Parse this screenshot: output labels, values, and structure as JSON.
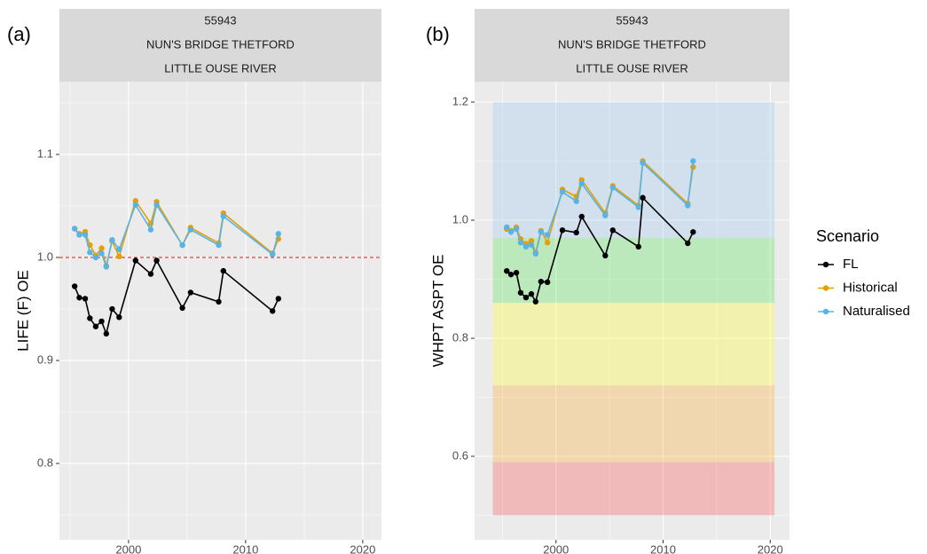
{
  "chart_data": [
    {
      "type": "line",
      "panel_label": "(a)",
      "strip": [
        "55943",
        "NUN'S BRIDGE THETFORD",
        "LITTLE OUSE RIVER"
      ],
      "y_label": "LIFE (F) OE",
      "x": [
        1995.4,
        1995.8,
        1996.3,
        1996.7,
        1997.2,
        1997.7,
        1998.1,
        1998.6,
        1999.2,
        2000.6,
        2001.9,
        2002.4,
        2004.6,
        2005.3,
        2007.7,
        2008.1,
        2012.3,
        2012.8
      ],
      "series": [
        {
          "name": "FL",
          "color": "#000000",
          "values": [
            0.972,
            0.961,
            0.96,
            0.941,
            0.933,
            0.938,
            0.926,
            0.95,
            0.942,
            0.997,
            0.984,
            0.997,
            0.951,
            0.966,
            0.957,
            0.987,
            0.948,
            0.96
          ]
        },
        {
          "name": "Historical",
          "color": "#E69F00",
          "values": [
            1.028,
            1.023,
            1.025,
            1.012,
            1.002,
            1.009,
            0.992,
            1.016,
            1.001,
            1.055,
            1.033,
            1.054,
            1.012,
            1.029,
            1.014,
            1.043,
            1.004,
            1.018
          ]
        },
        {
          "name": "Naturalised",
          "color": "#56B4E9",
          "values": [
            1.028,
            1.022,
            1.022,
            1.005,
            1.0,
            1.004,
            0.991,
            1.017,
            1.008,
            1.051,
            1.027,
            1.051,
            1.012,
            1.027,
            1.012,
            1.04,
            1.003,
            1.023
          ]
        }
      ],
      "hline": {
        "value": 1,
        "color": "#e8413a"
      },
      "xlim": [
        1994.1,
        2021.6
      ],
      "xticks": [
        2000,
        2010,
        2020
      ],
      "ylim": [
        0.7259,
        1.1707
      ],
      "yticks": [
        0.8,
        0.9,
        {
          "value": 1,
          "label": "1.0"
        },
        1.1
      ],
      "grid": true
    },
    {
      "type": "line",
      "panel_label": "(b)",
      "strip": [
        "55943",
        "NUN'S BRIDGE THETFORD",
        "LITTLE OUSE RIVER"
      ],
      "y_label": "WHPT ASPT OE",
      "x": [
        1995.4,
        1995.8,
        1996.3,
        1996.7,
        1997.2,
        1997.7,
        1998.1,
        1998.6,
        1999.2,
        2000.6,
        2001.9,
        2002.4,
        2004.6,
        2005.3,
        2007.7,
        2008.1,
        2012.3,
        2012.8
      ],
      "series": [
        {
          "name": "FL",
          "color": "#000000",
          "values": [
            0.914,
            0.908,
            0.911,
            0.877,
            0.869,
            0.875,
            0.862,
            0.896,
            0.895,
            0.983,
            0.979,
            1.006,
            0.94,
            0.983,
            0.955,
            1.038,
            0.961,
            0.98
          ]
        },
        {
          "name": "Historical",
          "color": "#E69F00",
          "values": [
            0.985,
            0.982,
            0.988,
            0.968,
            0.96,
            0.965,
            0.945,
            0.982,
            0.962,
            1.052,
            1.04,
            1.068,
            1.012,
            1.058,
            1.025,
            1.1,
            1.028,
            1.09
          ]
        },
        {
          "name": "Naturalised",
          "color": "#56B4E9",
          "values": [
            0.988,
            0.98,
            0.985,
            0.962,
            0.955,
            0.958,
            0.943,
            0.98,
            0.975,
            1.048,
            1.032,
            1.062,
            1.008,
            1.055,
            1.022,
            1.097,
            1.025,
            1.1
          ]
        }
      ],
      "bands_x": [
        1994.1,
        2020.4
      ],
      "bands": [
        {
          "range": [
            0.5,
            0.59
          ],
          "color": "rgba(255,60,60,0.28)"
        },
        {
          "range": [
            0.59,
            0.72
          ],
          "color": "rgba(255,170,40,0.3)"
        },
        {
          "range": [
            0.72,
            0.86
          ],
          "color": "rgba(255,255,60,0.35)"
        },
        {
          "range": [
            0.86,
            0.97
          ],
          "color": "rgba(80,230,80,0.3)"
        },
        {
          "range": [
            0.97,
            1.2
          ],
          "color": "rgba(150,200,240,0.3)"
        }
      ],
      "xlim": [
        1992.4,
        2021.8
      ],
      "xticks": [
        2000,
        2010,
        2020
      ],
      "ylim": [
        0.4586,
        1.2346
      ],
      "yticks": [
        0.6,
        0.8,
        {
          "value": 1,
          "label": "1.0"
        },
        1.2
      ],
      "grid": true
    }
  ],
  "legend_title": "Scenario"
}
